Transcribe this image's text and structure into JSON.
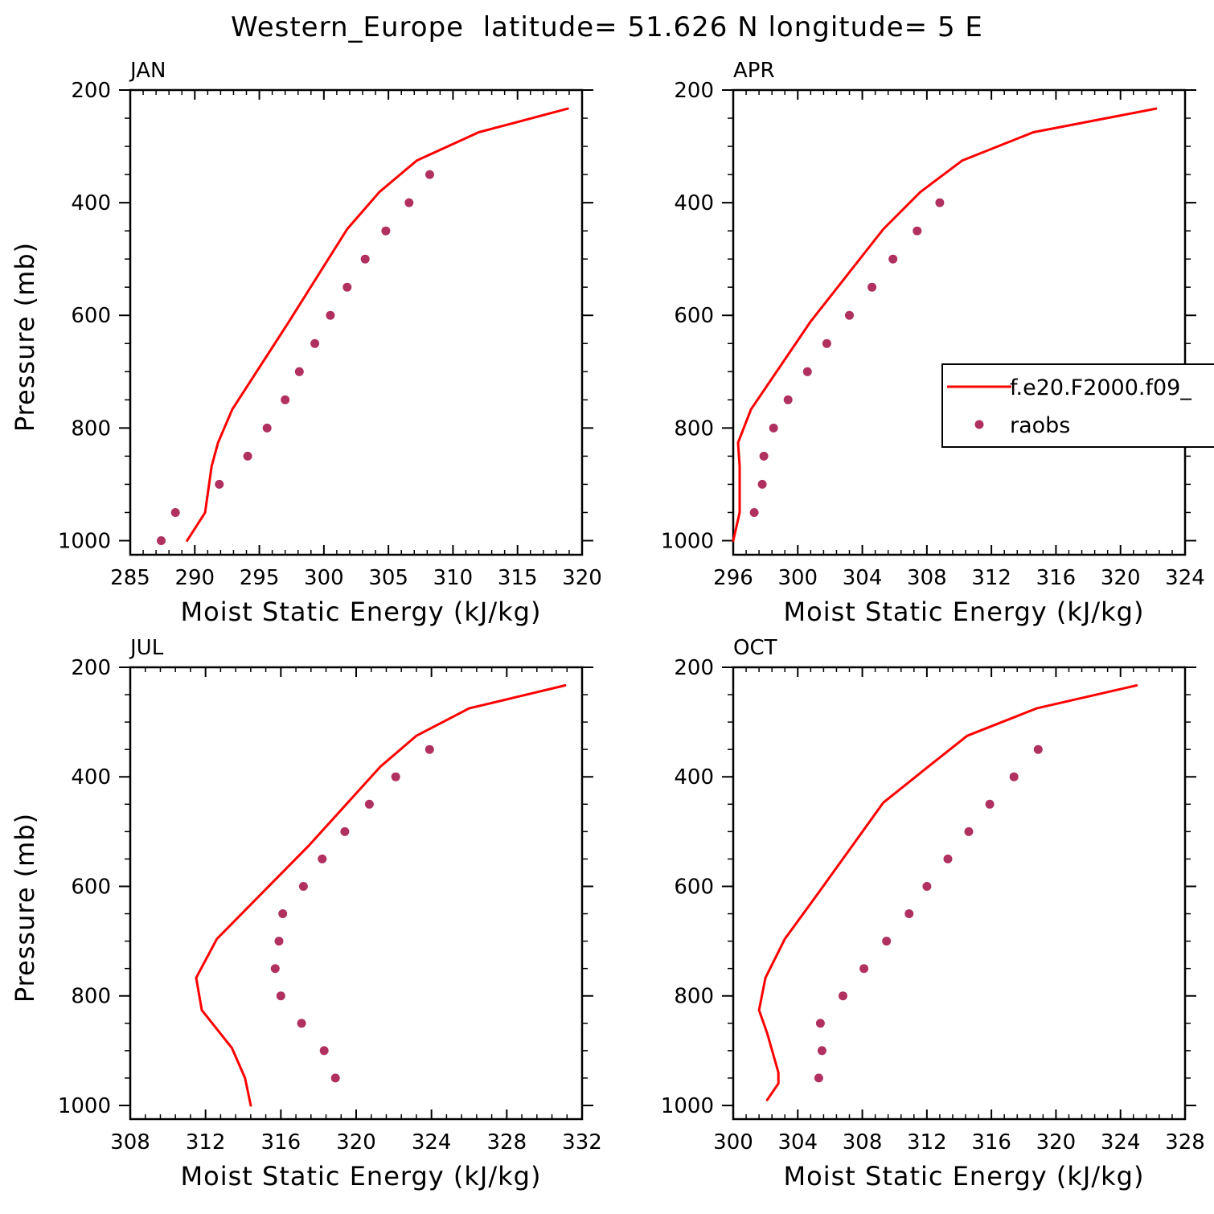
{
  "figure": {
    "title": "Western_Europe  latitude= 51.626 N longitude= 5 E"
  },
  "legend": {
    "model_label": "f.e20.F2000.f09_",
    "obs_label": "raobs"
  },
  "colors": {
    "model_line": "#ff0000",
    "obs_marker": "#b03060",
    "axes": "#000000",
    "background": "#ffffff"
  },
  "chart_data": [
    {
      "type": "line",
      "title": "JAN",
      "xlabel": "Moist Static Energy (kJ/kg)",
      "ylabel": "Pressure (mb)",
      "xlim": [
        285,
        320
      ],
      "ylim": [
        1025,
        200
      ],
      "xticks": [
        285,
        290,
        295,
        300,
        305,
        310,
        315,
        320
      ],
      "yticks": [
        200,
        400,
        600,
        800,
        1000
      ],
      "grid": false,
      "series": [
        {
          "name": "f.e20.F2000.f09_",
          "style": "line",
          "x": [
            318.9,
            312.0,
            307.2,
            304.3,
            301.8,
            297.3,
            292.9,
            291.8,
            291.3,
            290.8,
            289.4
          ],
          "y": [
            233,
            275,
            325,
            381,
            447,
            611,
            767,
            826,
            868,
            950,
            1000
          ]
        },
        {
          "name": "raobs",
          "style": "marker",
          "x": [
            308.2,
            306.6,
            304.8,
            303.2,
            301.8,
            300.5,
            299.3,
            298.1,
            297.0,
            295.6,
            294.1,
            291.9,
            288.5,
            287.4
          ],
          "y": [
            350,
            400,
            450,
            500,
            550,
            600,
            650,
            700,
            750,
            800,
            850,
            900,
            950,
            1000
          ]
        }
      ]
    },
    {
      "type": "line",
      "title": "APR",
      "xlabel": "Moist Static Energy (kJ/kg)",
      "ylabel": "",
      "xlim": [
        296,
        324
      ],
      "ylim": [
        1025,
        200
      ],
      "xticks": [
        296,
        300,
        304,
        308,
        312,
        316,
        320,
        324
      ],
      "yticks": [
        200,
        400,
        600,
        800,
        1000
      ],
      "grid": false,
      "series": [
        {
          "name": "f.e20.F2000.f09_",
          "style": "line",
          "x": [
            322.2,
            314.6,
            310.2,
            307.6,
            305.3,
            300.8,
            297.1,
            296.3,
            296.4,
            296.4,
            296.0
          ],
          "y": [
            233,
            275,
            325,
            381,
            447,
            611,
            767,
            826,
            868,
            950,
            1000
          ]
        },
        {
          "name": "raobs",
          "style": "marker",
          "x": [
            308.8,
            307.4,
            305.9,
            304.6,
            303.2,
            301.8,
            300.6,
            299.4,
            298.5,
            297.9,
            297.8,
            297.3
          ],
          "y": [
            400,
            450,
            500,
            550,
            600,
            650,
            700,
            750,
            800,
            850,
            900,
            950
          ]
        }
      ]
    },
    {
      "type": "line",
      "title": "JUL",
      "xlabel": "Moist Static Energy (kJ/kg)",
      "ylabel": "Pressure (mb)",
      "xlim": [
        308,
        332
      ],
      "ylim": [
        1025,
        200
      ],
      "xticks": [
        308,
        312,
        316,
        320,
        324,
        328,
        332
      ],
      "yticks": [
        200,
        400,
        600,
        800,
        1000
      ],
      "grid": false,
      "series": [
        {
          "name": "f.e20.F2000.f09_",
          "style": "line",
          "x": [
            331.1,
            326.0,
            323.2,
            321.3,
            317.5,
            312.6,
            311.5,
            311.8,
            313.4,
            314.1,
            314.4
          ],
          "y": [
            233,
            275,
            325,
            381,
            525,
            696,
            767,
            826,
            895,
            950,
            1000
          ]
        },
        {
          "name": "raobs",
          "style": "marker",
          "x": [
            323.9,
            322.1,
            320.7,
            319.4,
            318.2,
            317.2,
            316.1,
            315.9,
            315.7,
            316.0,
            317.1,
            318.3,
            318.9
          ],
          "y": [
            350,
            400,
            450,
            500,
            550,
            600,
            650,
            700,
            750,
            800,
            850,
            900,
            950
          ]
        }
      ]
    },
    {
      "type": "line",
      "title": "OCT",
      "xlabel": "Moist Static Energy (kJ/kg)",
      "ylabel": "",
      "xlim": [
        300,
        328
      ],
      "ylim": [
        1025,
        200
      ],
      "xticks": [
        300,
        304,
        308,
        312,
        316,
        320,
        324,
        328
      ],
      "yticks": [
        200,
        400,
        600,
        800,
        1000
      ],
      "grid": false,
      "series": [
        {
          "name": "f.e20.F2000.f09_",
          "style": "line",
          "x": [
            325.0,
            318.8,
            314.5,
            312.1,
            309.3,
            305.3,
            303.2,
            302.0,
            301.6,
            302.1,
            302.8,
            302.8,
            302.1
          ],
          "y": [
            233,
            275,
            325,
            381,
            447,
            611,
            696,
            767,
            826,
            868,
            940,
            960,
            990
          ]
        },
        {
          "name": "raobs",
          "style": "marker",
          "x": [
            318.9,
            317.4,
            315.9,
            314.6,
            313.3,
            312.0,
            310.9,
            309.5,
            308.1,
            306.8,
            305.4,
            305.5,
            305.3
          ],
          "y": [
            350,
            400,
            450,
            500,
            550,
            600,
            650,
            700,
            750,
            800,
            850,
            900,
            950
          ]
        }
      ]
    }
  ]
}
